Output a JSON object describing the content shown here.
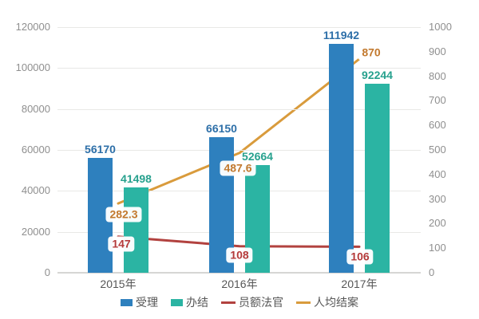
{
  "chart_data": {
    "type": "bar",
    "subtype": "grouped-bars-with-lines-dual-axis",
    "title": "",
    "categories": [
      "2015年",
      "2016年",
      "2017年"
    ],
    "series": [
      {
        "name": "受理",
        "type": "bar",
        "axis": "left",
        "color": "#2e80be",
        "label_color": "#2d6fa8",
        "values": [
          56170,
          66150,
          111942
        ],
        "labels": [
          "56170",
          "66150",
          "111942"
        ]
      },
      {
        "name": "办结",
        "type": "bar",
        "axis": "left",
        "color": "#2bb4a3",
        "label_color": "#27a18e",
        "values": [
          41498,
          52664,
          92244
        ],
        "labels": [
          "41498",
          "52664",
          "92244"
        ]
      },
      {
        "name": "员额法官",
        "type": "line",
        "axis": "right",
        "color": "#b2423f",
        "label_color": "#b43a3a",
        "values": [
          147,
          108,
          106
        ],
        "labels": [
          "147",
          "108",
          "106"
        ]
      },
      {
        "name": "人均结案",
        "type": "line",
        "axis": "right",
        "color": "#d99b3c",
        "label_color": "#c2792e",
        "values": [
          282.3,
          487.6,
          870
        ],
        "labels": [
          "282.3",
          "487.6",
          "870"
        ]
      }
    ],
    "left_axis": {
      "min": 0,
      "max": 120000,
      "step": 20000,
      "tick_labels": [
        "0",
        "20000",
        "40000",
        "60000",
        "80000",
        "100000",
        "120000"
      ]
    },
    "right_axis": {
      "min": 0,
      "max": 1000,
      "step": 100,
      "tick_labels": [
        "0",
        "100",
        "200",
        "300",
        "400",
        "500",
        "600",
        "700",
        "800",
        "900",
        "1000"
      ]
    },
    "grid": true,
    "legend_position": "bottom",
    "colors": {
      "background": "#ffffff",
      "gridline": "#e8e8e6",
      "axis_line": "#d6d6d4",
      "tick_text": "#8f8f8f",
      "category_text": "#565656"
    }
  }
}
